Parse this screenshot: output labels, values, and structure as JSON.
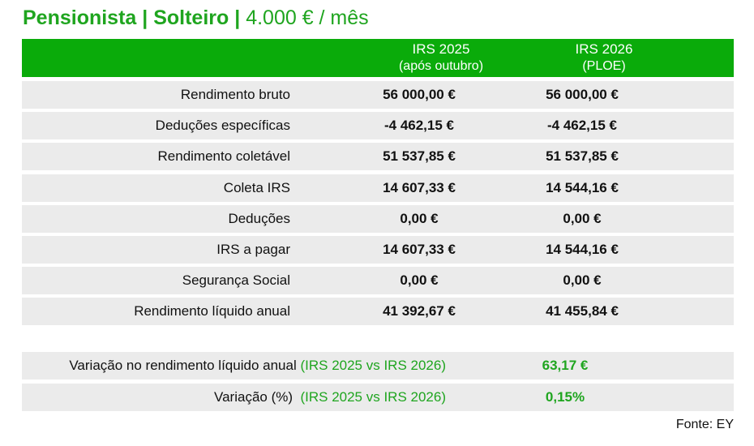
{
  "title": {
    "part1": "Pensionista",
    "sep1": " | ",
    "part2": "Solteiro",
    "sep2": " | ",
    "part3": "4.000 € / mês"
  },
  "header": {
    "col1": {
      "title": "IRS 2025",
      "subtitle": "(após outubro)"
    },
    "col2": {
      "title": "IRS 2026",
      "subtitle": "(PLOE)"
    }
  },
  "rows": [
    {
      "label": "Rendimento bruto",
      "v2025": "56 000,00 €",
      "v2026": "56 000,00 €"
    },
    {
      "label": "Deduções específicas",
      "v2025": "-4 462,15 €",
      "v2026": "-4 462,15 €"
    },
    {
      "label": "Rendimento coletável",
      "v2025": "51 537,85 €",
      "v2026": "51 537,85 €"
    },
    {
      "label": "Coleta IRS",
      "v2025": "14 607,33 €",
      "v2026": "14 544,16 €"
    },
    {
      "label": "Deduções",
      "v2025": "0,00 €",
      "v2026": "0,00 €"
    },
    {
      "label": "IRS a pagar",
      "v2025": "14 607,33 €",
      "v2026": "14 544,16 €"
    },
    {
      "label": "Segurança Social",
      "v2025": "0,00 €",
      "v2026": "0,00 €"
    },
    {
      "label": "Rendimento líquido anual",
      "v2025": "41 392,67 €",
      "v2026": "41 455,84 €"
    }
  ],
  "summary": [
    {
      "label": "Variação no rendimento líquido anual",
      "note": "(IRS 2025 vs IRS 2026)",
      "value": "63,17 €"
    },
    {
      "label": "Variação (%)",
      "note": "(IRS 2025 vs IRS 2026)",
      "value": "0,15%"
    }
  ],
  "source": "Fonte: EY",
  "colors": {
    "green": "#0aab0a",
    "row_bg": "#ebebeb"
  }
}
